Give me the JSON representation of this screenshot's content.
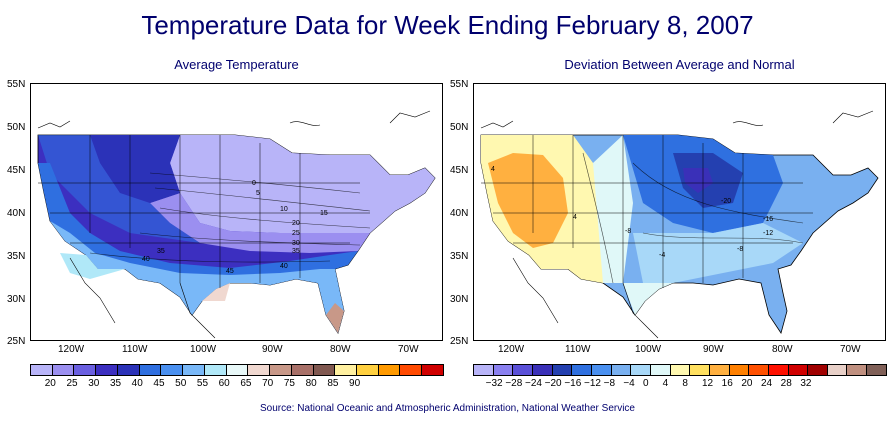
{
  "title": "Temperature Data for Week Ending February 8, 2007",
  "source": "Source:  National Oceanic and Atmospheric Administration, National Weather Service",
  "left_map": {
    "subtitle": "Average Temperature",
    "lat_labels": [
      "55N",
      "50N",
      "45N",
      "40N",
      "35N",
      "30N",
      "25N"
    ],
    "lon_labels": [
      "120W",
      "110W",
      "100W",
      "90W",
      "80W",
      "70W"
    ],
    "contour_labels": [
      "0",
      "5",
      "10",
      "15",
      "20",
      "25",
      "30",
      "35",
      "35",
      "40",
      "40",
      "45"
    ],
    "legend_colors": [
      "#b8b4f8",
      "#9b8ff0",
      "#6a5fe0",
      "#3c2fc0",
      "#2b32b8",
      "#2f6fe0",
      "#4a90f0",
      "#79b8f8",
      "#b0e8f8",
      "#e8f8f8",
      "#f0d8d0",
      "#c89888",
      "#a87068",
      "#805850",
      "#fff0a0",
      "#ffd040",
      "#ff9a00",
      "#ff4a00",
      "#d00000"
    ],
    "legend_labels": [
      "20",
      "25",
      "30",
      "35",
      "40",
      "45",
      "50",
      "55",
      "60",
      "65",
      "70",
      "75",
      "80",
      "85",
      "90"
    ]
  },
  "right_map": {
    "subtitle": "Deviation Between Average and Normal",
    "lat_labels": [
      "55N",
      "50N",
      "45N",
      "40N",
      "35N",
      "30N",
      "25N"
    ],
    "lon_labels": [
      "120W",
      "110W",
      "100W",
      "90W",
      "80W",
      "70W"
    ],
    "contour_labels": [
      "4",
      "4",
      "-8",
      "-4",
      "-20",
      "-16",
      "-12",
      "-8"
    ],
    "legend_colors": [
      "#b8b4f8",
      "#8a80f0",
      "#5a50d8",
      "#3a30b8",
      "#2440b0",
      "#2f70e0",
      "#4a90f0",
      "#79b0f0",
      "#a8d8f8",
      "#e0f8f8",
      "#fff8b0",
      "#ffe060",
      "#ffb040",
      "#ff8000",
      "#ff5000",
      "#ff1000",
      "#d00000",
      "#a00000",
      "#e8d0c8",
      "#c09080",
      "#806058"
    ],
    "legend_labels": [
      "−32",
      "−28",
      "−24",
      "−20",
      "−16",
      "−12",
      "−8",
      "−4",
      "0",
      "4",
      "8",
      "12",
      "16",
      "20",
      "24",
      "28",
      "32"
    ]
  }
}
